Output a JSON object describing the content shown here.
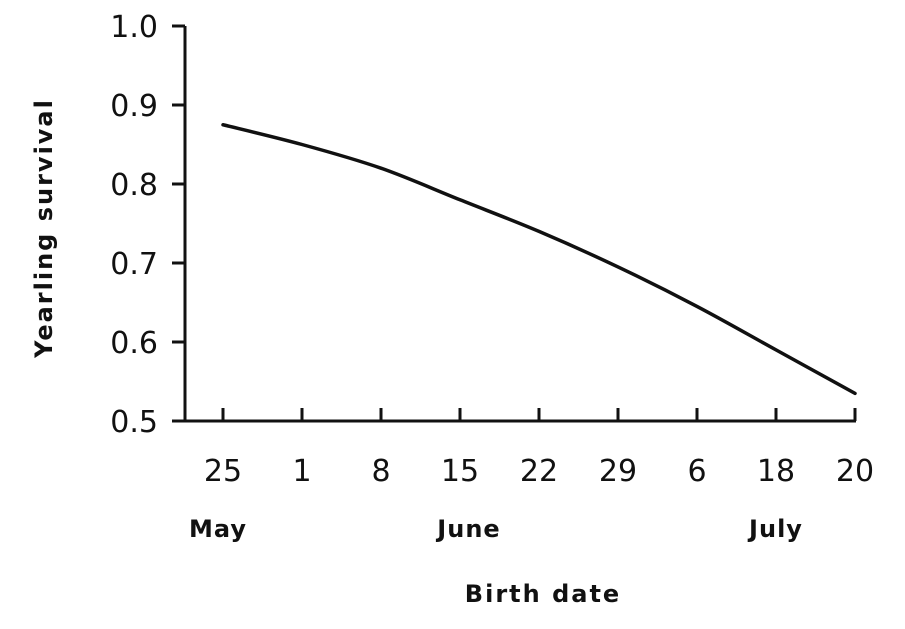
{
  "chart_data": {
    "type": "line",
    "title": "",
    "xlabel": "Birth date",
    "ylabel": "Yearling survival",
    "ylim": [
      0.5,
      1.0
    ],
    "y_ticks": [
      "0.5",
      "0.6",
      "0.7",
      "0.8",
      "0.9",
      "1.0"
    ],
    "x_ticks": [
      "25",
      "1",
      "8",
      "15",
      "22",
      "29",
      "6",
      "18",
      "20"
    ],
    "months": [
      "May",
      "June",
      "July"
    ],
    "grid": false,
    "legend": "none",
    "series": [
      {
        "x": [
          "25",
          "1",
          "8",
          "15",
          "22",
          "29",
          "6",
          "18",
          "20"
        ],
        "values": [
          0.875,
          0.85,
          0.82,
          0.78,
          0.74,
          0.695,
          0.645,
          0.59,
          0.535
        ]
      }
    ]
  }
}
